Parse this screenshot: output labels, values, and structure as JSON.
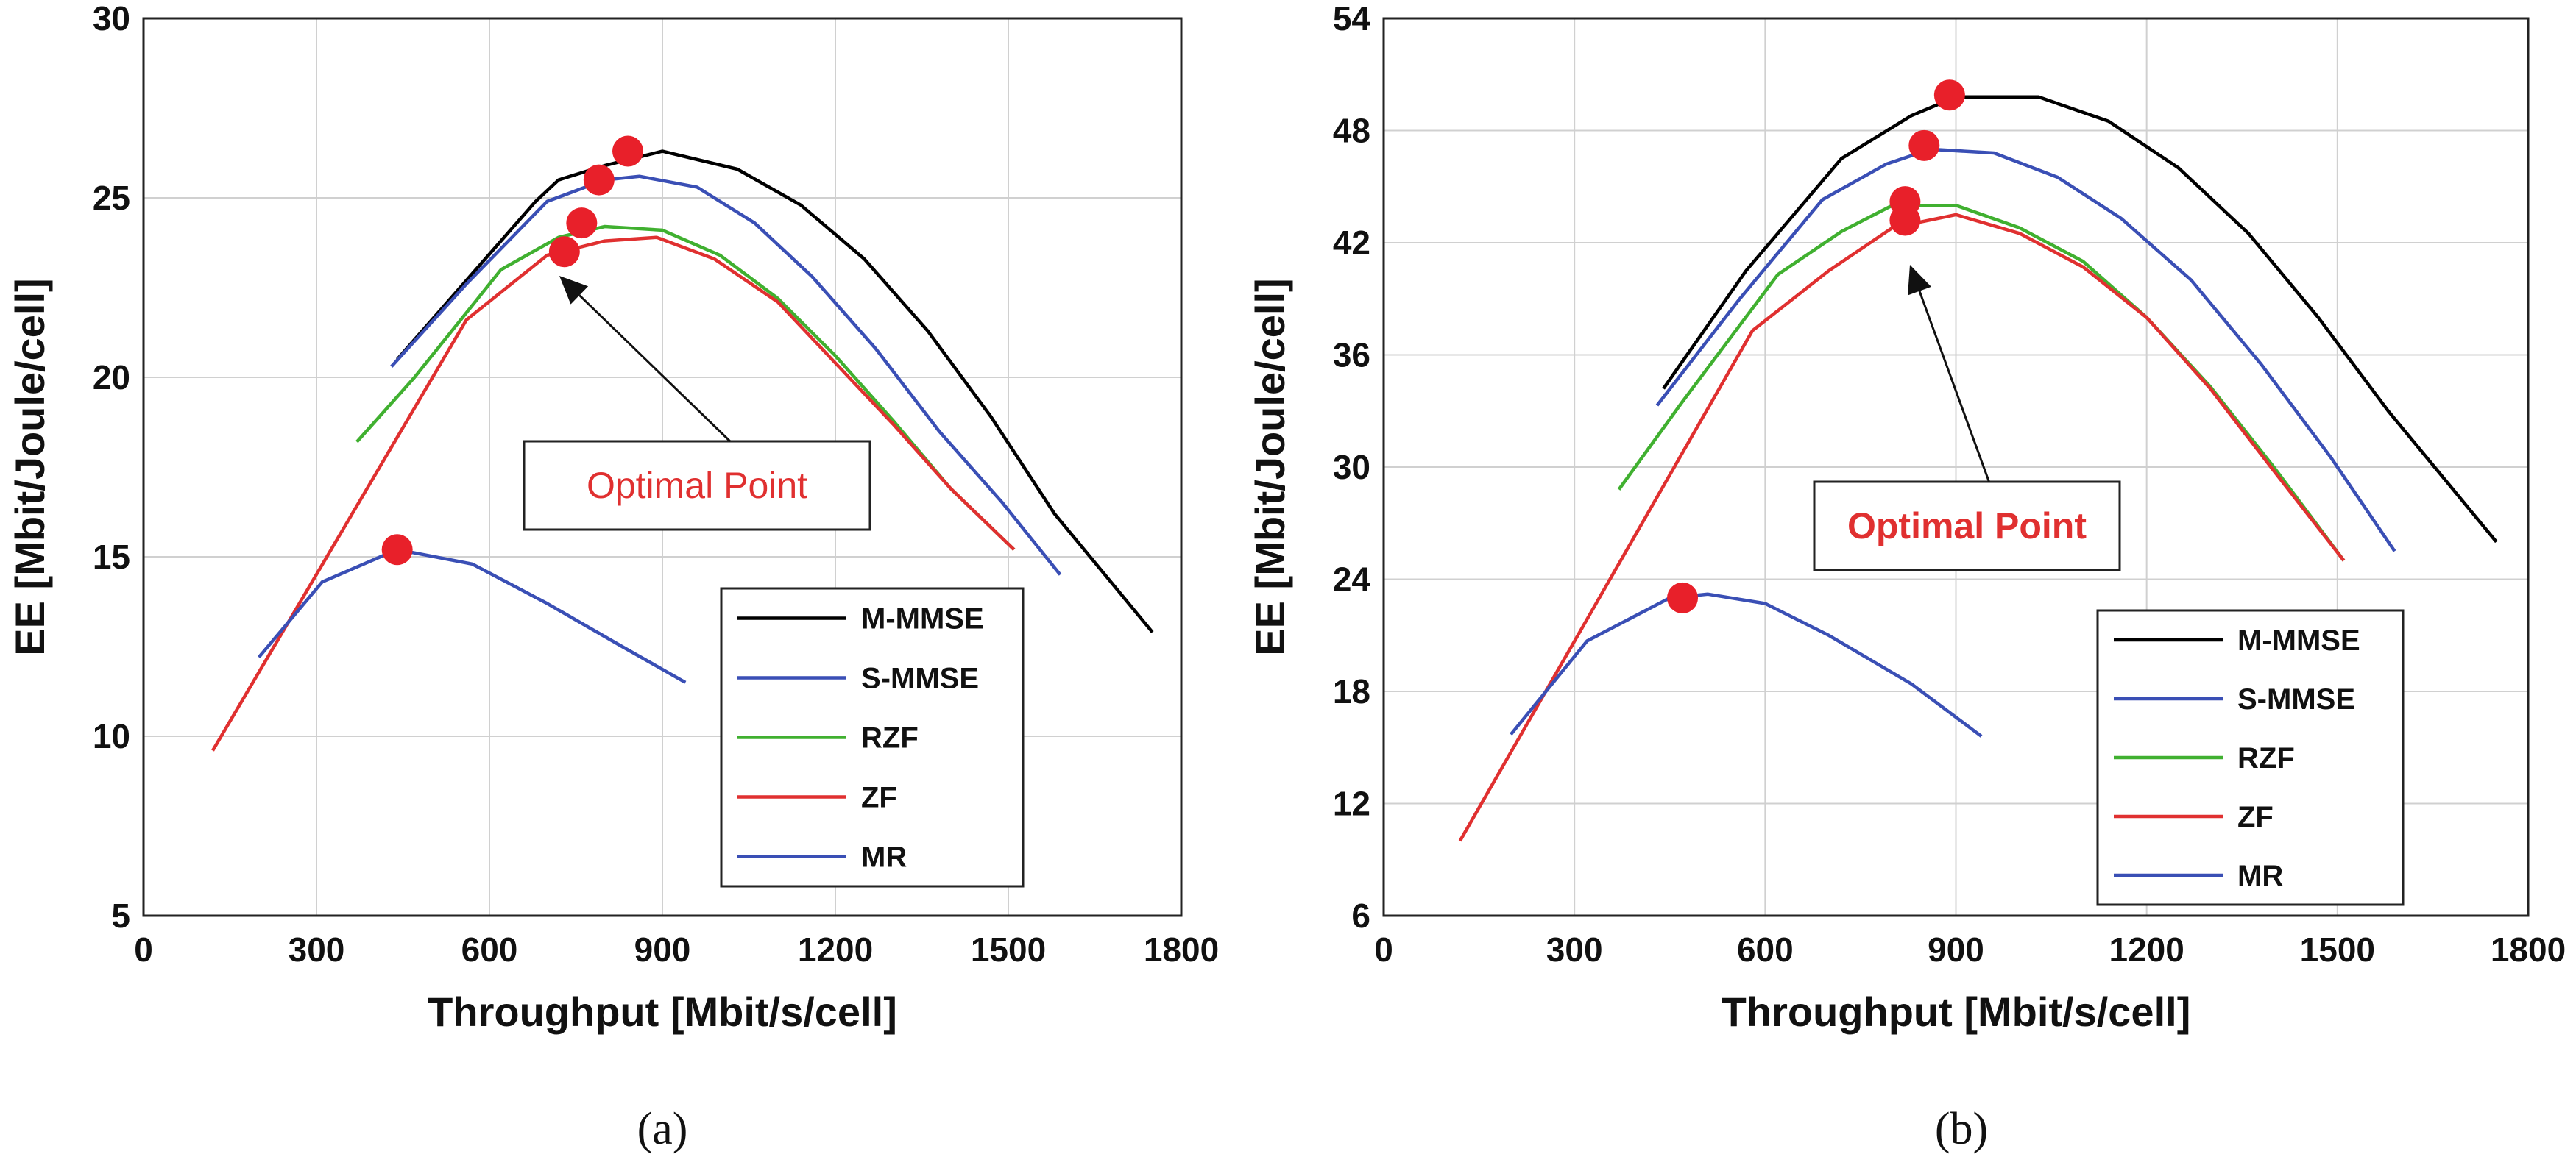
{
  "chart_data": [
    {
      "type": "line",
      "panel": "a",
      "caption": "(a)",
      "xlabel": "Throughput [Mbit/s/cell]",
      "ylabel": "EE [Mbit/Joule/cell]",
      "xlim": [
        0,
        1800
      ],
      "ylim": [
        5,
        30
      ],
      "xticks": [
        0,
        300,
        600,
        900,
        1200,
        1500,
        1800
      ],
      "yticks": [
        5,
        10,
        15,
        20,
        25,
        30
      ],
      "grid": true,
      "legend_position": "bottom-right",
      "series": [
        {
          "name": "M-MMSE",
          "color": "#000000",
          "x": [
            440,
            560,
            680,
            720,
            800,
            900,
            1030,
            1140,
            1250,
            1360,
            1470,
            1580,
            1750
          ],
          "y": [
            20.5,
            22.7,
            24.9,
            25.5,
            25.9,
            26.3,
            25.8,
            24.8,
            23.3,
            21.3,
            18.9,
            16.2,
            12.9
          ]
        },
        {
          "name": "S-MMSE",
          "color": "#3a4fb5",
          "x": [
            430,
            560,
            700,
            800,
            860,
            960,
            1060,
            1160,
            1270,
            1380,
            1490,
            1590
          ],
          "y": [
            20.3,
            22.6,
            24.9,
            25.5,
            25.6,
            25.3,
            24.3,
            22.8,
            20.8,
            18.5,
            16.5,
            14.5
          ]
        },
        {
          "name": "RZF",
          "color": "#40b030",
          "x": [
            370,
            470,
            620,
            720,
            800,
            900,
            1000,
            1100,
            1200,
            1300,
            1400,
            1510
          ],
          "y": [
            18.2,
            20.0,
            23.0,
            23.9,
            24.2,
            24.1,
            23.4,
            22.2,
            20.6,
            18.8,
            16.9,
            15.2
          ]
        },
        {
          "name": "ZF",
          "color": "#e03030",
          "x": [
            120,
            560,
            700,
            800,
            890,
            990,
            1100,
            1200,
            1300,
            1400,
            1510
          ],
          "y": [
            9.6,
            21.6,
            23.4,
            23.8,
            23.9,
            23.3,
            22.1,
            20.4,
            18.7,
            16.9,
            15.2
          ]
        },
        {
          "name": "MR",
          "color": "#3a4fb5",
          "x": [
            200,
            310,
            440,
            570,
            700,
            830,
            940
          ],
          "y": [
            12.2,
            14.3,
            15.2,
            14.8,
            13.7,
            12.5,
            11.5
          ]
        }
      ],
      "optimal_points": [
        {
          "x": 840,
          "y": 26.3
        },
        {
          "x": 790,
          "y": 25.5
        },
        {
          "x": 760,
          "y": 24.3
        },
        {
          "x": 730,
          "y": 23.5
        },
        {
          "x": 440,
          "y": 15.2
        }
      ],
      "annotation": "Optimal Point"
    },
    {
      "type": "line",
      "panel": "b",
      "caption": "(b)",
      "xlabel": "Throughput [Mbit/s/cell]",
      "ylabel": "EE [Mbit/Joule/cell]",
      "xlim": [
        0,
        1800
      ],
      "ylim": [
        6,
        54
      ],
      "xticks": [
        0,
        300,
        600,
        900,
        1200,
        1500,
        1800
      ],
      "yticks": [
        6,
        12,
        18,
        24,
        30,
        36,
        42,
        48,
        54
      ],
      "grid": true,
      "legend_position": "bottom-right",
      "series": [
        {
          "name": "M-MMSE",
          "color": "#000000",
          "x": [
            440,
            570,
            720,
            830,
            900,
            1030,
            1140,
            1250,
            1360,
            1470,
            1580,
            1750
          ],
          "y": [
            34.2,
            40.5,
            46.5,
            48.8,
            49.8,
            49.8,
            48.5,
            46.0,
            42.5,
            38.0,
            33.0,
            26.0
          ]
        },
        {
          "name": "S-MMSE",
          "color": "#3a4fb5",
          "x": [
            430,
            560,
            690,
            790,
            860,
            960,
            1060,
            1160,
            1270,
            1380,
            1490,
            1590
          ],
          "y": [
            33.3,
            39.0,
            44.3,
            46.2,
            47.0,
            46.8,
            45.5,
            43.3,
            40.0,
            35.5,
            30.5,
            25.5
          ]
        },
        {
          "name": "RZF",
          "color": "#40b030",
          "x": [
            370,
            470,
            620,
            720,
            800,
            900,
            1000,
            1100,
            1200,
            1300,
            1400,
            1510
          ],
          "y": [
            28.8,
            33.5,
            40.3,
            42.6,
            44.0,
            44.0,
            42.8,
            41.0,
            38.0,
            34.3,
            30.0,
            25.0
          ]
        },
        {
          "name": "ZF",
          "color": "#e03030",
          "x": [
            120,
            580,
            700,
            800,
            900,
            1000,
            1100,
            1200,
            1300,
            1400,
            1510
          ],
          "y": [
            10.0,
            37.3,
            40.5,
            42.8,
            43.5,
            42.5,
            40.7,
            38.0,
            34.2,
            29.8,
            25.0
          ]
        },
        {
          "name": "MR",
          "color": "#3a4fb5",
          "x": [
            200,
            320,
            450,
            510,
            600,
            700,
            830,
            940
          ],
          "y": [
            15.7,
            20.7,
            23.0,
            23.2,
            22.7,
            21.0,
            18.4,
            15.6
          ]
        }
      ],
      "optimal_points": [
        {
          "x": 890,
          "y": 49.9
        },
        {
          "x": 850,
          "y": 47.2
        },
        {
          "x": 820,
          "y": 44.2
        },
        {
          "x": 820,
          "y": 43.2
        },
        {
          "x": 470,
          "y": 23.0
        }
      ],
      "annotation": "Optimal Point"
    }
  ]
}
